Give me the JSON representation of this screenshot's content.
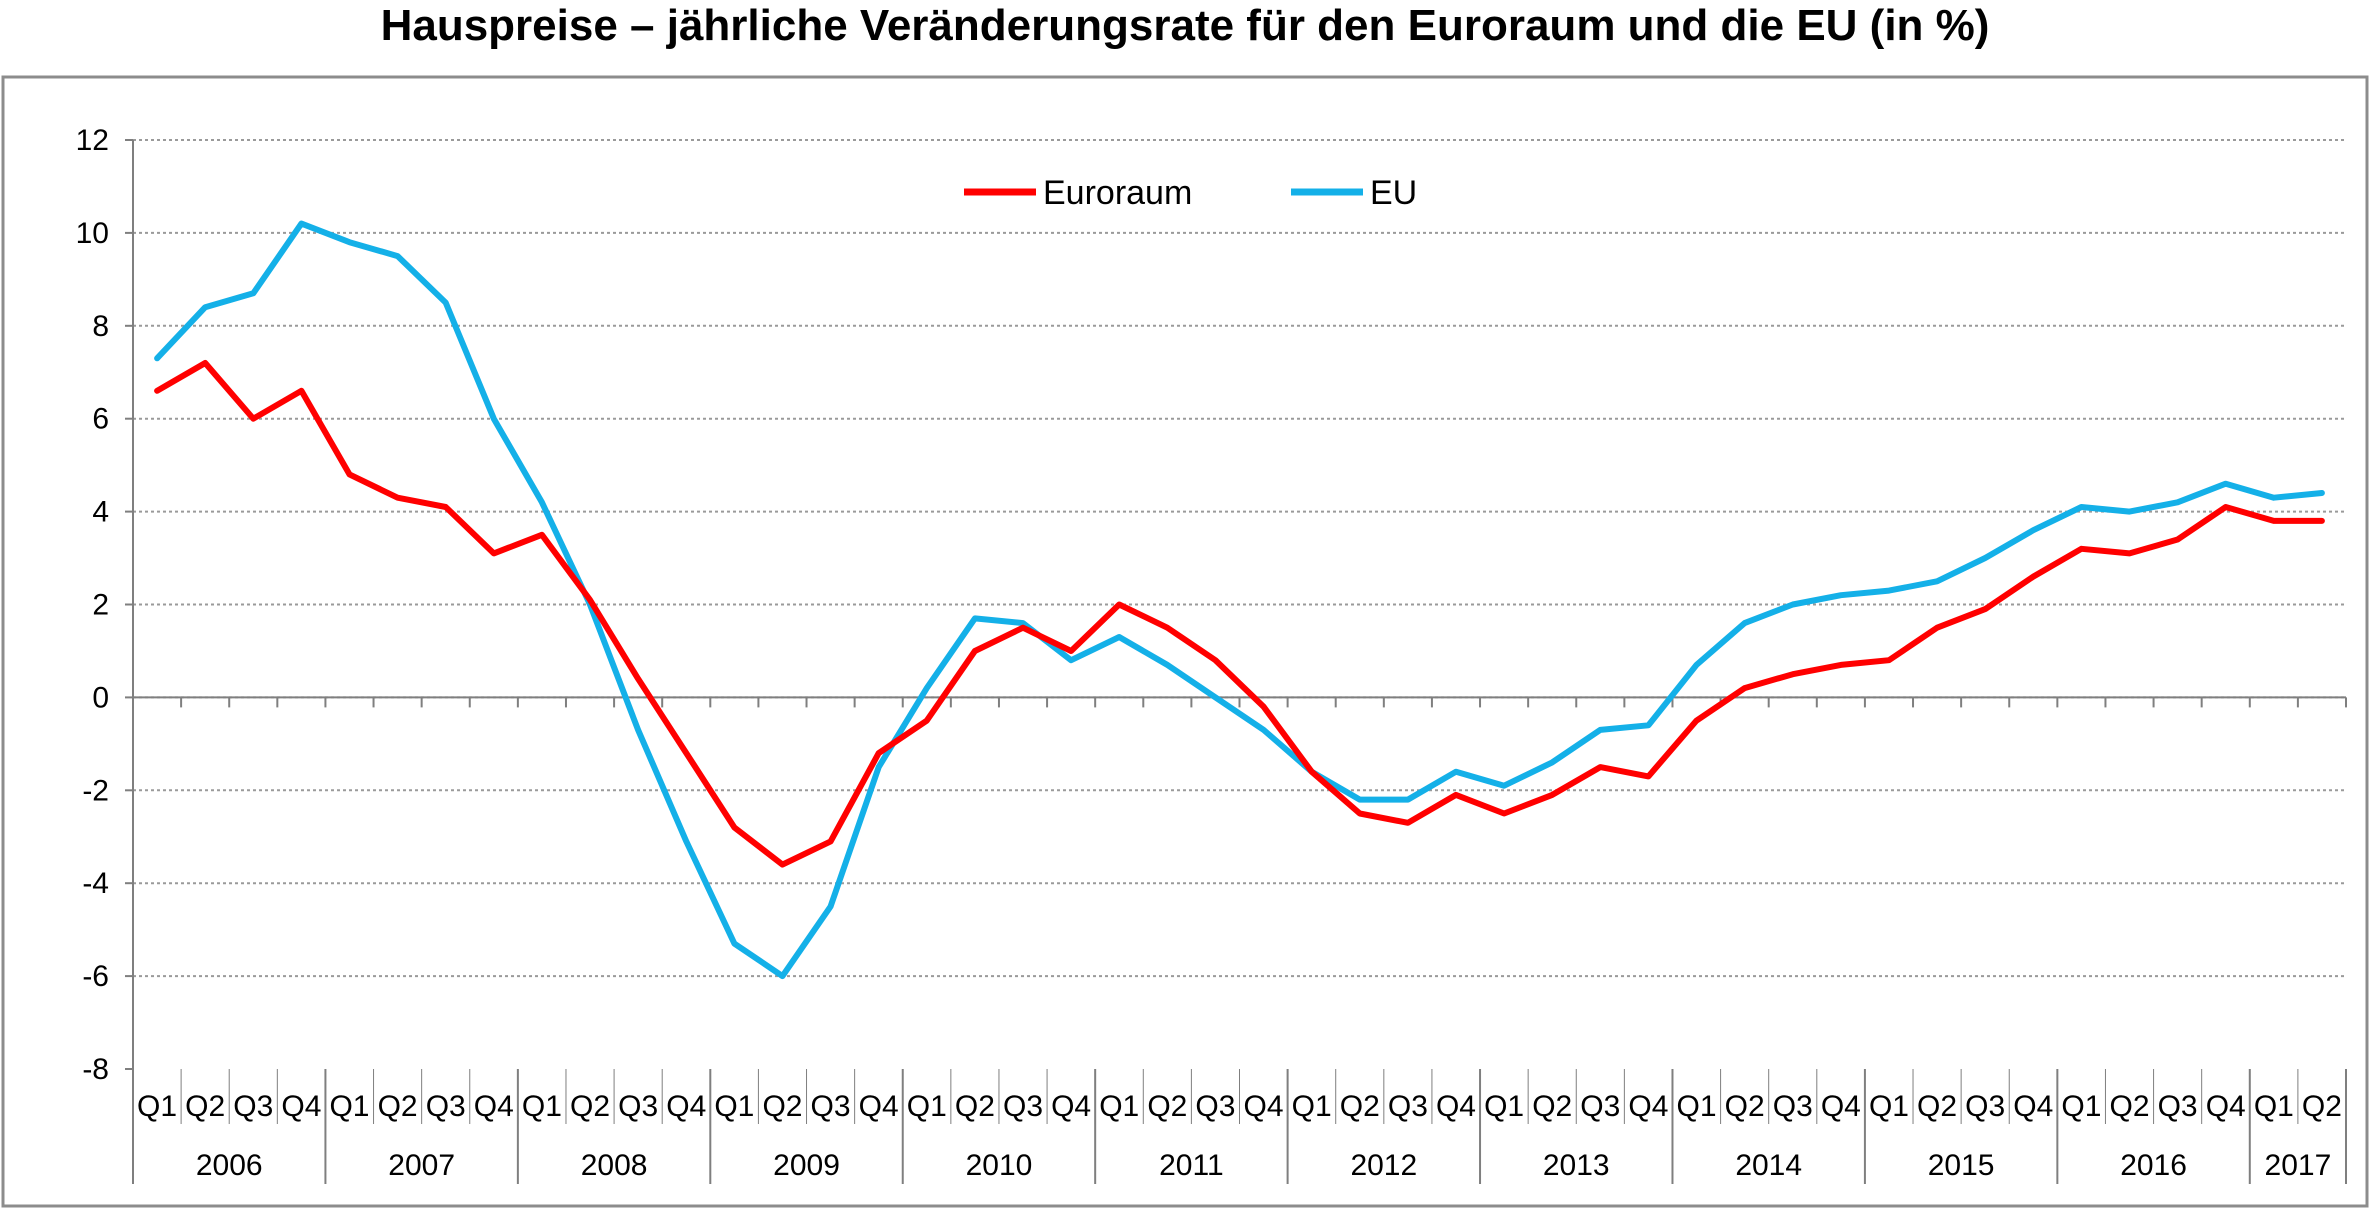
{
  "chart_data": {
    "type": "line",
    "title": "Hauspreise – jährliche Veränderungsrate für den Euroraum und die EU (in %)",
    "xlabel": "",
    "ylabel": "",
    "ylim": [
      -8,
      12
    ],
    "yticks": [
      "12",
      "10",
      "8",
      "6",
      "4",
      "2",
      "0",
      "-2",
      "-4",
      "-6",
      "-8"
    ],
    "grid": true,
    "legend_position": "top-center",
    "quarters": [
      "Q1",
      "Q2",
      "Q3",
      "Q4",
      "Q1",
      "Q2",
      "Q3",
      "Q4",
      "Q1",
      "Q2",
      "Q3",
      "Q4",
      "Q1",
      "Q2",
      "Q3",
      "Q4",
      "Q1",
      "Q2",
      "Q3",
      "Q4",
      "Q1",
      "Q2",
      "Q3",
      "Q4",
      "Q1",
      "Q2",
      "Q3",
      "Q4",
      "Q1",
      "Q2",
      "Q3",
      "Q4",
      "Q1",
      "Q2",
      "Q3",
      "Q4",
      "Q1",
      "Q2",
      "Q3",
      "Q4",
      "Q1",
      "Q2",
      "Q3",
      "Q4",
      "Q1",
      "Q2"
    ],
    "years": [
      {
        "label": "2006",
        "quarters": 4
      },
      {
        "label": "2007",
        "quarters": 4
      },
      {
        "label": "2008",
        "quarters": 4
      },
      {
        "label": "2009",
        "quarters": 4
      },
      {
        "label": "2010",
        "quarters": 4
      },
      {
        "label": "2011",
        "quarters": 4
      },
      {
        "label": "2012",
        "quarters": 4
      },
      {
        "label": "2013",
        "quarters": 4
      },
      {
        "label": "2014",
        "quarters": 4
      },
      {
        "label": "2015",
        "quarters": 4
      },
      {
        "label": "2016",
        "quarters": 4
      },
      {
        "label": "2017",
        "quarters": 2
      }
    ],
    "series": [
      {
        "name": "Euroraum",
        "color": "#ff0000",
        "values": [
          6.6,
          7.2,
          6.0,
          6.6,
          4.8,
          4.3,
          4.1,
          3.1,
          3.5,
          2.1,
          0.4,
          -1.2,
          -2.8,
          -3.6,
          -3.1,
          -1.2,
          -0.5,
          1.0,
          1.5,
          1.0,
          2.0,
          1.5,
          0.8,
          -0.2,
          -1.6,
          -2.5,
          -2.7,
          -2.1,
          -2.5,
          -2.1,
          -1.5,
          -1.7,
          -0.5,
          0.2,
          0.5,
          0.7,
          0.8,
          1.5,
          1.9,
          2.6,
          3.2,
          3.1,
          3.4,
          4.1,
          3.8,
          3.8
        ]
      },
      {
        "name": "EU",
        "color": "#14b0e8",
        "values": [
          7.3,
          8.4,
          8.7,
          10.2,
          9.8,
          9.5,
          8.5,
          6.0,
          4.2,
          2.0,
          -0.7,
          -3.1,
          -5.3,
          -6.0,
          -4.5,
          -1.5,
          0.2,
          1.7,
          1.6,
          0.8,
          1.3,
          0.7,
          0.0,
          -0.7,
          -1.6,
          -2.2,
          -2.2,
          -1.6,
          -1.9,
          -1.4,
          -0.7,
          -0.6,
          0.7,
          1.6,
          2.0,
          2.2,
          2.3,
          2.5,
          3.0,
          3.6,
          4.1,
          4.0,
          4.2,
          4.6,
          4.3,
          4.4
        ]
      }
    ]
  }
}
